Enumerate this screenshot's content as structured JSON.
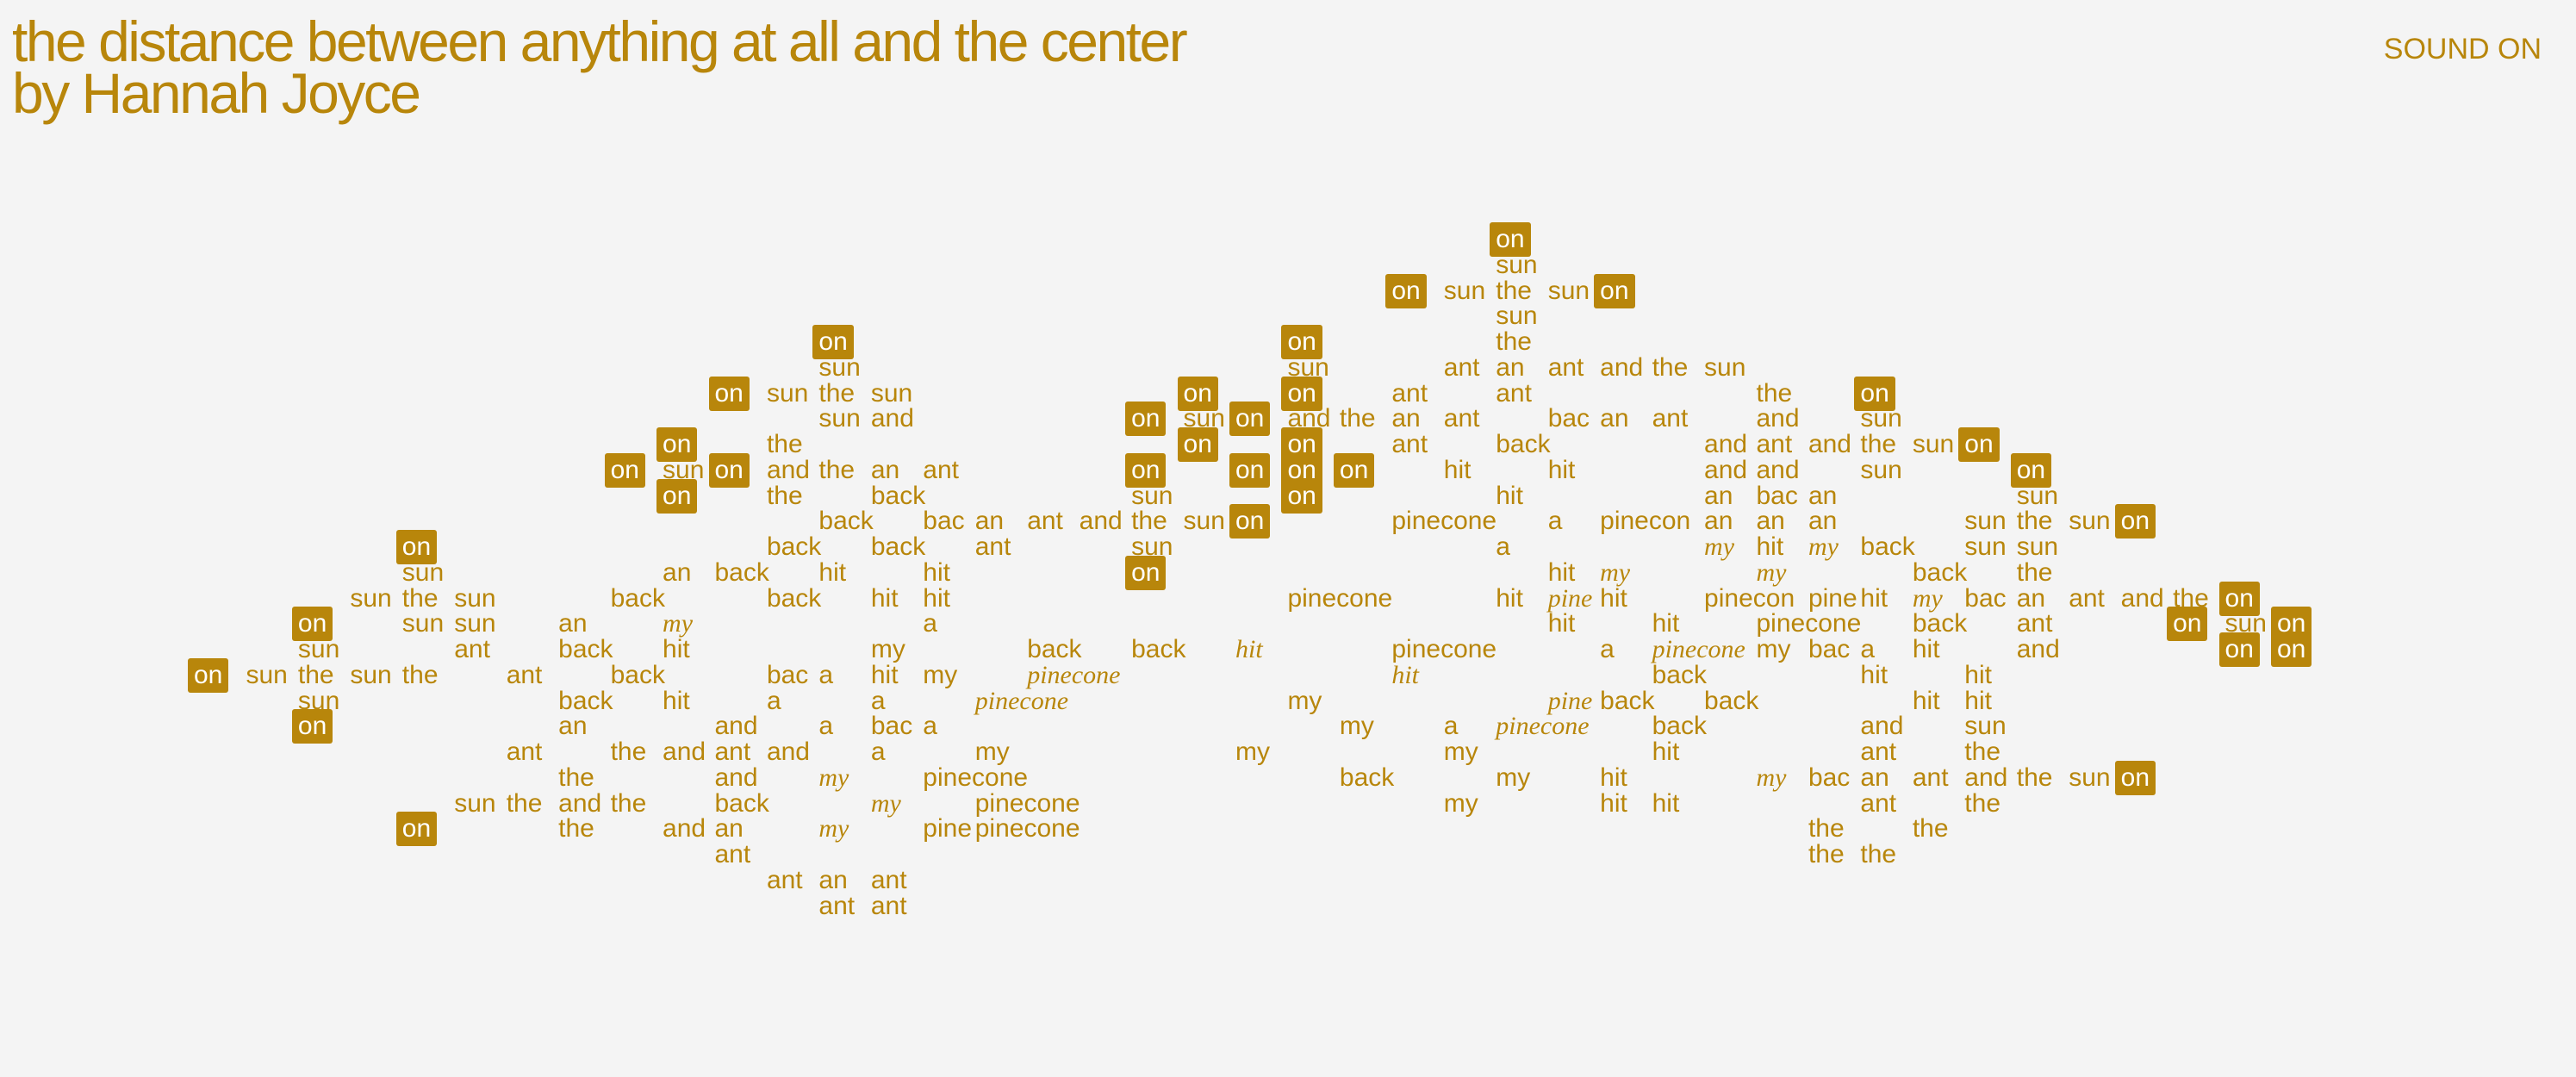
{
  "header": {
    "title_lines": [
      "the distance between anything at all and the center",
      "by Hannah Joyce"
    ],
    "sound": "SOUND ON"
  },
  "rows": [
    [
      "on"
    ],
    [
      "sun"
    ],
    [
      "on",
      "sun",
      "the",
      "sun",
      "on"
    ],
    [
      "sun"
    ],
    [
      "on",
      "on",
      "the"
    ],
    [
      "sun",
      "sun",
      "ant",
      "an",
      "ant",
      "and",
      "the",
      "sun"
    ],
    [
      "on",
      "sun",
      "the",
      "sun",
      "on",
      "on",
      "ant",
      "ant",
      "the",
      "on"
    ],
    [
      "sun",
      "and",
      "on",
      "sun",
      "on",
      "and",
      "the",
      "an",
      "ant",
      "bac",
      "an",
      "ant",
      "and",
      "sun"
    ],
    [
      "on",
      "the",
      "on",
      "on",
      "ant",
      "back",
      "and",
      "ant",
      "and",
      "the",
      "sun",
      "on"
    ],
    [
      "on",
      "sun",
      "on",
      "and",
      "the",
      "an",
      "ant",
      "on",
      "on",
      "on",
      "on",
      "hit",
      "hit",
      "and",
      "and",
      "sun",
      "on"
    ],
    [
      "on",
      "the",
      "back",
      "sun",
      "on",
      "hit",
      "an",
      "bac",
      "an",
      "sun"
    ],
    [
      "back",
      "bac",
      "an",
      "ant",
      "and",
      "the",
      "sun",
      "on",
      "pinecone",
      "a",
      "pinecon",
      "an",
      "an",
      "an",
      "sun",
      "the",
      "sun",
      "on"
    ],
    [
      "on",
      "back",
      "back",
      "ant",
      "sun",
      "a",
      "my",
      "hit",
      "my",
      "back",
      "sun",
      "sun"
    ],
    [
      "sun",
      "an",
      "back",
      "hit",
      "hit",
      "on",
      "hit",
      "my",
      "my",
      "back",
      "the"
    ],
    [
      "sun",
      "the",
      "sun",
      "back",
      "back",
      "hit",
      "hit",
      "pinecone",
      "hit",
      "pine",
      "hit",
      "pinecon",
      "pine",
      "hit",
      "my",
      "bac",
      "an",
      "ant",
      "and",
      "the",
      "on"
    ],
    [
      "on",
      "sun",
      "sun",
      "an",
      "my",
      "a",
      "hit",
      "hit",
      "pinecone",
      "back",
      "ant",
      "on",
      "sun",
      "on"
    ],
    [
      "sun",
      "ant",
      "back",
      "hit",
      "my",
      "back",
      "back",
      "hit",
      "pinecone",
      "a",
      "pinecone",
      "my",
      "bac",
      "a",
      "hit",
      "and",
      "on",
      "on"
    ],
    [
      "on",
      "sun",
      "the",
      "sun",
      "the",
      "ant",
      "back",
      "bac",
      "a",
      "hit",
      "my",
      "pinecone",
      "hit",
      "back",
      "hit",
      "hit"
    ],
    [
      "sun",
      "back",
      "hit",
      "a",
      "a",
      "pinecone",
      "my",
      "pine",
      "back",
      "back",
      "hit",
      "hit"
    ],
    [
      "on",
      "an",
      "and",
      "a",
      "bac",
      "a",
      "my",
      "a",
      "pinecone",
      "back",
      "and",
      "sun"
    ],
    [
      "ant",
      "the",
      "and",
      "ant",
      "and",
      "a",
      "my",
      "my",
      "my",
      "hit",
      "ant",
      "the"
    ],
    [
      "the",
      "and",
      "my",
      "pinecone",
      "back",
      "my",
      "hit",
      "my",
      "bac",
      "an",
      "ant",
      "and",
      "the",
      "sun",
      "on"
    ],
    [
      "sun",
      "the",
      "and",
      "the",
      "back",
      "my",
      "pinecone",
      "my",
      "hit",
      "hit",
      "ant",
      "the"
    ],
    [
      "on",
      "the",
      "and",
      "an",
      "my",
      "pine",
      "pinecone",
      "the",
      "the"
    ],
    [
      "ant",
      "the",
      "the"
    ],
    [
      "ant",
      "an",
      "ant"
    ],
    [
      "ant",
      "ant"
    ]
  ]
}
